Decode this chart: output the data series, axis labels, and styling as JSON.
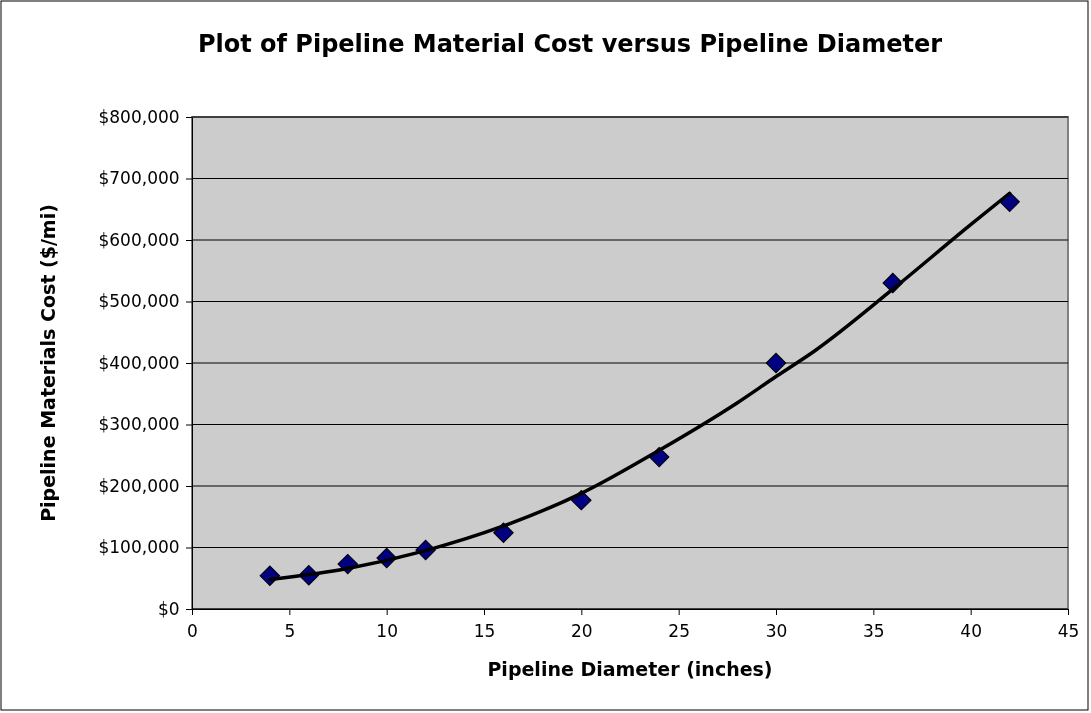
{
  "chart_data": {
    "type": "scatter",
    "title": "Plot of Pipeline Material Cost versus Pipeline Diameter",
    "xlabel": "Pipeline Diameter (inches)",
    "ylabel": "Pipeline Materials Cost ($/mi)",
    "xlim": [
      0,
      45
    ],
    "xticks": [
      0,
      5,
      10,
      15,
      20,
      25,
      30,
      35,
      40,
      45
    ],
    "ylim": [
      0,
      800000
    ],
    "yticks": [
      {
        "value": 0,
        "label": "$0"
      },
      {
        "value": 100000,
        "label": "$100,000"
      },
      {
        "value": 200000,
        "label": "$200,000"
      },
      {
        "value": 300000,
        "label": "$300,000"
      },
      {
        "value": 400000,
        "label": "$400,000"
      },
      {
        "value": 500000,
        "label": "$500,000"
      },
      {
        "value": 600000,
        "label": "$600,000"
      },
      {
        "value": 700000,
        "label": "$700,000"
      },
      {
        "value": 800000,
        "label": "$800,000"
      }
    ],
    "grid": "y",
    "marker": "diamond",
    "series": [
      {
        "color": "#000080",
        "x": [
          4,
          6,
          8,
          10,
          12,
          16,
          20,
          24,
          30,
          36,
          42
        ],
        "values": [
          54000,
          55000,
          73000,
          83000,
          96000,
          124000,
          177000,
          247000,
          400000,
          530000,
          662000
        ]
      },
      {
        "type": "line",
        "color": "#000000",
        "line_style": "solid",
        "marker": "none",
        "x": [
          4,
          8,
          12,
          16,
          20,
          24,
          28,
          30,
          32,
          36,
          40,
          42
        ],
        "values": [
          48000,
          66000,
          95000,
          135000,
          188000,
          258000,
          335000,
          378000,
          420000,
          520000,
          625000,
          676000
        ]
      }
    ]
  }
}
